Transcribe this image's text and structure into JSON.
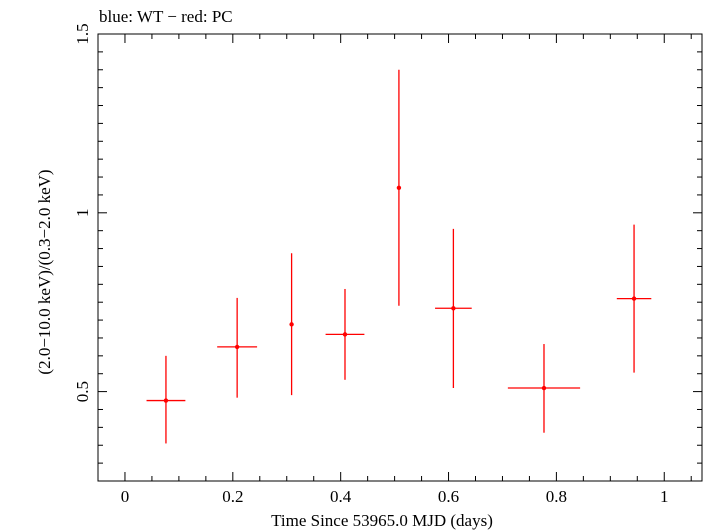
{
  "chart_data": {
    "type": "scatter",
    "title": "blue: WT − red: PC",
    "xlabel": "Time Since 53965.0 MJD (days)",
    "ylabel": "(2.0−10.0 keV)/(0.3−2.0 keV)",
    "xlim": [
      -0.05,
      1.07
    ],
    "ylim": [
      0.25,
      1.5
    ],
    "x_ticks": [
      {
        "value": 0,
        "label": "0"
      },
      {
        "value": 0.2,
        "label": "0.2"
      },
      {
        "value": 0.4,
        "label": "0.4"
      },
      {
        "value": 0.6,
        "label": "0.6"
      },
      {
        "value": 0.8,
        "label": "0.8"
      },
      {
        "value": 1.0,
        "label": "1"
      }
    ],
    "y_ticks": [
      {
        "value": 0.5,
        "label": "0.5"
      },
      {
        "value": 1.0,
        "label": "1"
      },
      {
        "value": 1.5,
        "label": "1.5"
      }
    ],
    "grid": false,
    "series": [
      {
        "color": "#ff0000",
        "points": [
          {
            "x": 0.076,
            "y": 0.475,
            "xerr": 0.036,
            "ylo": 0.355,
            "yhi": 0.6
          },
          {
            "x": 0.208,
            "y": 0.625,
            "xerr": 0.037,
            "ylo": 0.483,
            "yhi": 0.762
          },
          {
            "x": 0.309,
            "y": 0.688,
            "xerr": 0.0,
            "ylo": 0.49,
            "yhi": 0.887
          },
          {
            "x": 0.408,
            "y": 0.66,
            "xerr": 0.036,
            "ylo": 0.533,
            "yhi": 0.787
          },
          {
            "x": 0.508,
            "y": 1.07,
            "xerr": 0.0,
            "ylo": 0.74,
            "yhi": 1.4
          },
          {
            "x": 0.609,
            "y": 0.733,
            "xerr": 0.034,
            "ylo": 0.51,
            "yhi": 0.955
          },
          {
            "x": 0.777,
            "y": 0.51,
            "xerr": 0.067,
            "ylo": 0.385,
            "yhi": 0.633
          },
          {
            "x": 0.944,
            "y": 0.76,
            "xerr": 0.032,
            "ylo": 0.553,
            "yhi": 0.967
          }
        ]
      }
    ]
  }
}
